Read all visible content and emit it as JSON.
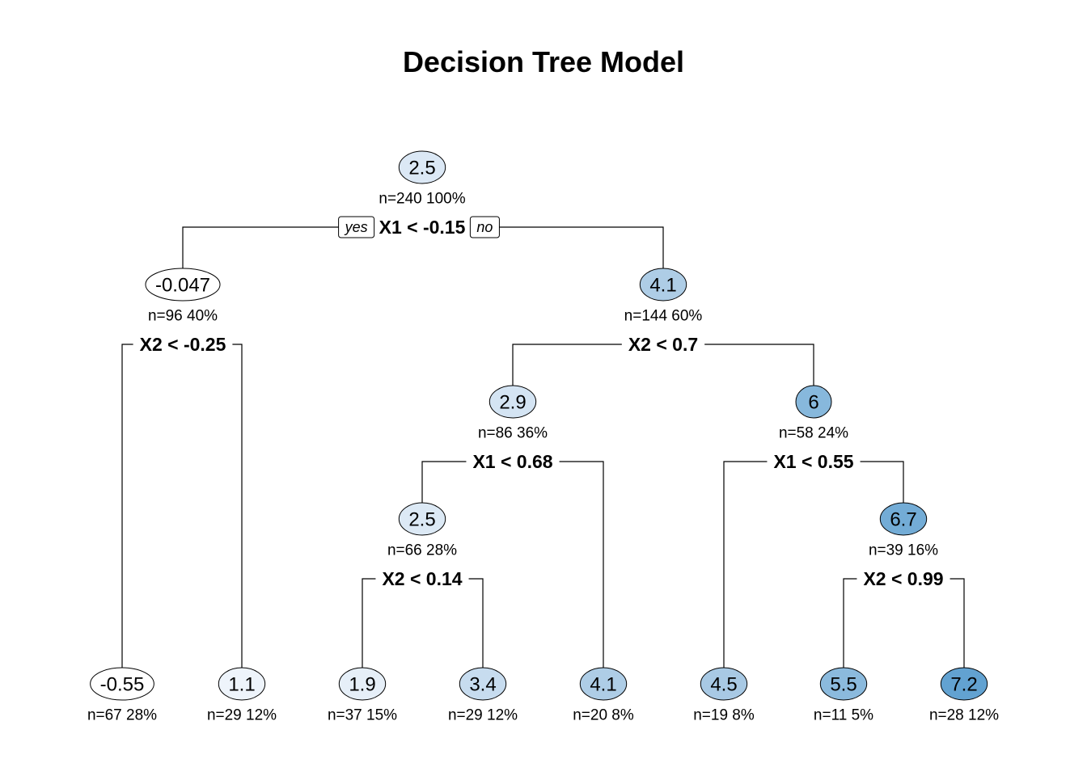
{
  "title": "Decision Tree Model",
  "branch_labels": {
    "yes": "yes",
    "no": "no"
  },
  "colors": {
    "edge": "#000000",
    "node_border": "#000000",
    "low": "#ffffff",
    "high": "#5a9fcf"
  },
  "nodes": [
    {
      "id": "n1",
      "value": "2.5",
      "stats": "n=240  100%",
      "split": "X1 < -0.15",
      "fill": "#dbe8f5"
    },
    {
      "id": "n2",
      "value": "-0.047",
      "stats": "n=96  40%",
      "split": "X2 < -0.25",
      "fill": "#ffffff"
    },
    {
      "id": "n3",
      "value": "4.1",
      "stats": "n=144  60%",
      "split": "X2 < 0.7",
      "fill": "#aecde6"
    },
    {
      "id": "n6",
      "value": "2.9",
      "stats": "n=86  36%",
      "split": "X1 < 0.68",
      "fill": "#d4e4f3"
    },
    {
      "id": "n7",
      "value": "6",
      "stats": "n=58  24%",
      "split": "X1 < 0.55",
      "fill": "#87b8dc"
    },
    {
      "id": "n12",
      "value": "2.5",
      "stats": "n=66  28%",
      "split": "X2 < 0.14",
      "fill": "#dce9f5"
    },
    {
      "id": "n15",
      "value": "6.7",
      "stats": "n=39  16%",
      "split": "X2 < 0.99",
      "fill": "#73acd6"
    },
    {
      "id": "n4",
      "value": "-0.55",
      "stats": "n=67  28%",
      "fill": "#ffffff"
    },
    {
      "id": "n5",
      "value": "1.1",
      "stats": "n=29  12%",
      "fill": "#eef4fb"
    },
    {
      "id": "n24",
      "value": "1.9",
      "stats": "n=37  15%",
      "fill": "#e6eff8"
    },
    {
      "id": "n25",
      "value": "3.4",
      "stats": "n=29  12%",
      "fill": "#c7dcef"
    },
    {
      "id": "n13",
      "value": "4.1",
      "stats": "n=20  8%",
      "fill": "#aecde6"
    },
    {
      "id": "n14",
      "value": "4.5",
      "stats": "n=19  8%",
      "fill": "#a8c9e4"
    },
    {
      "id": "n30",
      "value": "5.5",
      "stats": "n=11  5%",
      "fill": "#8bbadd"
    },
    {
      "id": "n31",
      "value": "7.2",
      "stats": "n=28  12%",
      "fill": "#62a2d1"
    }
  ]
}
